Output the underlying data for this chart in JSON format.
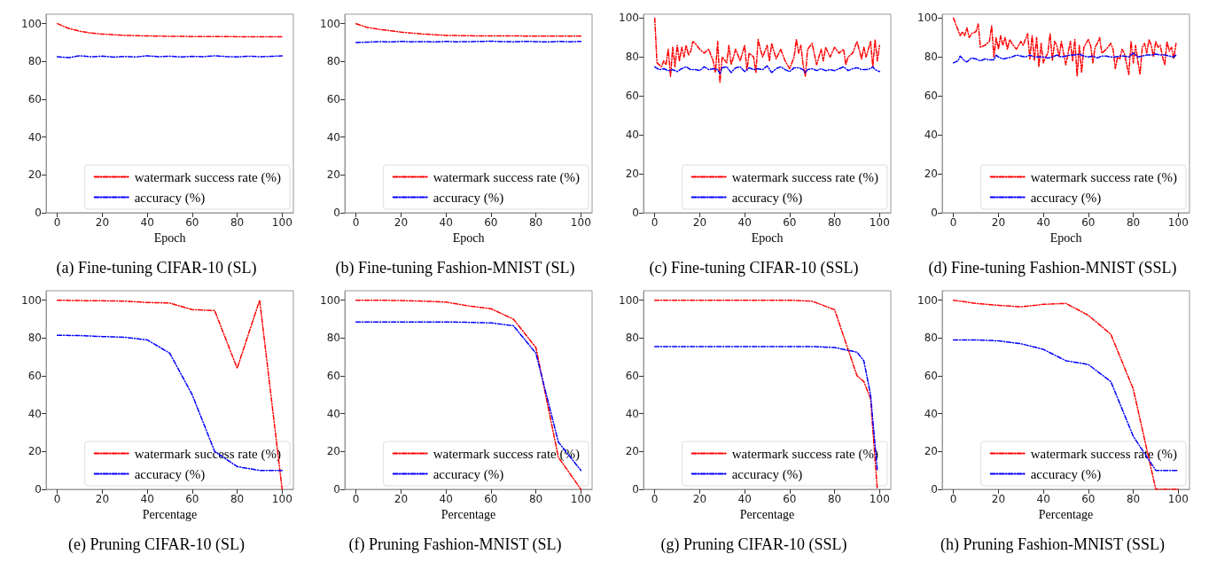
{
  "chart_data": [
    {
      "type": "line",
      "title": "(a) Fine-tuning CIFAR-10 (SL)",
      "xlabel": "Epoch",
      "xlim": [
        -5,
        105
      ],
      "xticks": [
        0,
        20,
        40,
        60,
        80,
        100
      ],
      "ylim": [
        0,
        105
      ],
      "yticks": [
        0,
        20,
        40,
        60,
        80,
        100
      ],
      "legend": "bottom right",
      "line_style": "dashed",
      "grid": false,
      "marker": "none",
      "series": [
        {
          "name": "watermark success rate (%)",
          "color": "#ff0000",
          "x": [
            0,
            5,
            10,
            15,
            20,
            30,
            40,
            50,
            60,
            70,
            80,
            90,
            100
          ],
          "values": [
            100,
            97.5,
            96,
            95,
            94.5,
            93.8,
            93.5,
            93.3,
            93.2,
            93.2,
            93.1,
            93.1,
            93.1
          ]
        },
        {
          "name": "accuracy (%)",
          "color": "#0000ff",
          "x": [
            0,
            5,
            10,
            15,
            20,
            25,
            30,
            35,
            40,
            45,
            50,
            55,
            60,
            65,
            70,
            75,
            80,
            85,
            90,
            95,
            100
          ],
          "values": [
            82.5,
            82,
            83,
            82.5,
            82.8,
            82.3,
            82.6,
            82.4,
            83,
            82.5,
            82.8,
            82.4,
            82.7,
            82.5,
            83,
            82.6,
            82.4,
            82.8,
            82.5,
            82.7,
            83
          ]
        }
      ]
    },
    {
      "type": "line",
      "title": "(b) Fine-tuning Fashion-MNIST (SL)",
      "xlabel": "Epoch",
      "xlim": [
        -5,
        105
      ],
      "xticks": [
        0,
        20,
        40,
        60,
        80,
        100
      ],
      "ylim": [
        0,
        105
      ],
      "yticks": [
        0,
        20,
        40,
        60,
        80,
        100
      ],
      "legend": "bottom right",
      "line_style": "dashed",
      "grid": false,
      "marker": "none",
      "series": [
        {
          "name": "watermark success rate (%)",
          "color": "#ff0000",
          "x": [
            0,
            5,
            10,
            15,
            20,
            30,
            40,
            50,
            60,
            70,
            80,
            90,
            100
          ],
          "values": [
            100,
            98,
            97,
            96.3,
            95.5,
            94.5,
            93.8,
            93.6,
            93.5,
            93.5,
            93.4,
            93.4,
            93.4
          ]
        },
        {
          "name": "accuracy (%)",
          "color": "#0000ff",
          "x": [
            0,
            5,
            10,
            15,
            20,
            25,
            30,
            35,
            40,
            45,
            50,
            55,
            60,
            65,
            70,
            75,
            80,
            85,
            90,
            95,
            100
          ],
          "values": [
            90,
            90.2,
            90.5,
            90.3,
            90.6,
            90.4,
            90.5,
            90.3,
            90.6,
            90.4,
            90.5,
            90.6,
            90.7,
            90.5,
            90.4,
            90.6,
            90.5,
            90.3,
            90.6,
            90.4,
            90.6
          ]
        }
      ]
    },
    {
      "type": "line",
      "title": "(c) Fine-tuning CIFAR-10 (SSL)",
      "xlabel": "Epoch",
      "xlim": [
        -5,
        105
      ],
      "xticks": [
        0,
        20,
        40,
        60,
        80,
        100
      ],
      "ylim": [
        0,
        102
      ],
      "yticks": [
        0,
        20,
        40,
        60,
        80,
        100
      ],
      "legend": "bottom right",
      "line_style": "dashed",
      "grid": false,
      "marker": "none",
      "series": [
        {
          "name": "watermark success rate (%)",
          "color": "#ff0000",
          "x": [
            0,
            1,
            2,
            3,
            4,
            5,
            6,
            7,
            8,
            9,
            10,
            11,
            12,
            13,
            14,
            15,
            16,
            17,
            18,
            20,
            22,
            24,
            26,
            27,
            28,
            29,
            30,
            32,
            33,
            34,
            36,
            38,
            40,
            41,
            42,
            44,
            45,
            46,
            47,
            48,
            50,
            51,
            52,
            54,
            56,
            58,
            60,
            62,
            63,
            64,
            65,
            66,
            67,
            68,
            70,
            72,
            74,
            75,
            76,
            78,
            80,
            82,
            84,
            85,
            86,
            88,
            90,
            92,
            93,
            94,
            96,
            97,
            98,
            99,
            100
          ],
          "values": [
            100,
            77,
            76,
            75,
            78,
            76,
            84,
            70,
            85,
            75,
            86,
            78,
            85,
            80,
            86,
            81,
            83,
            88,
            87,
            84,
            82,
            84,
            78,
            72,
            88,
            67,
            80,
            77,
            86,
            76,
            84,
            78,
            86,
            73,
            82,
            80,
            72,
            89,
            84,
            80,
            86,
            78,
            87,
            79,
            84,
            78,
            74,
            80,
            89,
            82,
            86,
            76,
            70,
            84,
            87,
            76,
            84,
            78,
            85,
            80,
            85,
            82,
            84,
            76,
            80,
            82,
            88,
            79,
            85,
            80,
            88,
            75,
            89,
            78,
            86
          ]
        },
        {
          "name": "accuracy (%)",
          "color": "#0000ff",
          "x": [
            0,
            2,
            4,
            6,
            8,
            10,
            12,
            14,
            16,
            18,
            20,
            22,
            24,
            26,
            28,
            29,
            30,
            32,
            34,
            36,
            38,
            40,
            42,
            44,
            46,
            48,
            50,
            52,
            54,
            56,
            58,
            60,
            62,
            64,
            66,
            67,
            68,
            70,
            72,
            74,
            76,
            78,
            80,
            82,
            84,
            86,
            88,
            90,
            92,
            94,
            96,
            97,
            98,
            100
          ],
          "values": [
            75,
            73.5,
            74,
            73,
            73.5,
            72.5,
            74,
            75,
            73.5,
            73.5,
            73,
            75,
            73.5,
            74,
            73.5,
            71.5,
            74.5,
            75,
            72,
            74.5,
            75,
            72.5,
            74.5,
            73.5,
            74,
            73.5,
            75.5,
            72,
            74,
            75,
            73.5,
            72.5,
            74.5,
            74.5,
            73.5,
            72,
            73.5,
            74,
            73,
            74,
            73,
            73.5,
            73,
            74,
            75,
            73,
            74,
            74.5,
            73.5,
            73.5,
            74,
            75,
            73.5,
            72.5
          ]
        }
      ]
    },
    {
      "type": "line",
      "title": "(d) Fine-tuning Fashion-MNIST (SSL)",
      "xlabel": "Epoch",
      "xlim": [
        -5,
        105
      ],
      "xticks": [
        0,
        20,
        40,
        60,
        80,
        100
      ],
      "ylim": [
        0,
        102
      ],
      "yticks": [
        0,
        20,
        40,
        60,
        80,
        100
      ],
      "legend": "bottom right",
      "line_style": "dashed",
      "grid": false,
      "marker": "none",
      "series": [
        {
          "name": "watermark success rate (%)",
          "color": "#ff0000",
          "x": [
            0,
            2,
            3,
            4,
            5,
            6,
            7,
            8,
            10,
            11,
            12,
            14,
            16,
            17,
            18,
            19,
            20,
            21,
            22,
            23,
            24,
            25,
            26,
            28,
            30,
            31,
            33,
            34,
            35,
            36,
            37,
            38,
            39,
            40,
            41,
            42,
            43,
            44,
            45,
            46,
            47,
            48,
            50,
            51,
            52,
            53,
            54,
            55,
            56,
            57,
            58,
            60,
            61,
            62,
            63,
            64,
            65,
            66,
            68,
            70,
            71,
            72,
            73,
            74,
            75,
            76,
            78,
            79,
            80,
            81,
            82,
            83,
            84,
            85,
            86,
            87,
            88,
            89,
            90,
            91,
            92,
            93,
            94,
            95,
            96,
            97,
            98,
            99
          ],
          "values": [
            100,
            94,
            91,
            93,
            91,
            95,
            90,
            92,
            93,
            97,
            85,
            86,
            88,
            96,
            80,
            90,
            84,
            91,
            86,
            90,
            84,
            89,
            87,
            84,
            88,
            86,
            92,
            79,
            91,
            78,
            90,
            75,
            87,
            77,
            80,
            82,
            92,
            78,
            88,
            86,
            80,
            88,
            76,
            82,
            88,
            78,
            89,
            70,
            86,
            72,
            85,
            89,
            86,
            77,
            85,
            87,
            90,
            82,
            84,
            87,
            84,
            74,
            80,
            79,
            84,
            82,
            71,
            88,
            77,
            86,
            78,
            71,
            85,
            87,
            82,
            89,
            86,
            80,
            88,
            85,
            86,
            80,
            76,
            88,
            83,
            85,
            79,
            87
          ]
        },
        {
          "name": "accuracy (%)",
          "color": "#0000ff",
          "x": [
            0,
            2,
            3,
            5,
            6,
            8,
            10,
            12,
            14,
            16,
            18,
            19,
            20,
            22,
            24,
            26,
            28,
            30,
            32,
            34,
            36,
            38,
            40,
            42,
            44,
            46,
            48,
            50,
            52,
            54,
            56,
            58,
            60,
            62,
            64,
            66,
            68,
            70,
            72,
            74,
            76,
            78,
            80,
            82,
            84,
            86,
            88,
            90,
            92,
            94,
            96,
            98,
            99
          ],
          "values": [
            77,
            78,
            80.5,
            78,
            77.5,
            79.5,
            79,
            78,
            79,
            78.5,
            78.5,
            81,
            80,
            79,
            79.5,
            80,
            81,
            80.5,
            80,
            81,
            80,
            80,
            80,
            79.5,
            80,
            81,
            80,
            80.5,
            81,
            81,
            81.5,
            80.5,
            80,
            80.5,
            79.5,
            80.5,
            80.5,
            80,
            80,
            80.5,
            80.5,
            80,
            82,
            80,
            80.5,
            81,
            81,
            81.5,
            81,
            81,
            80.5,
            80,
            81
          ]
        }
      ]
    },
    {
      "type": "line",
      "title": "(e) Pruning CIFAR-10 (SL)",
      "xlabel": "Percentage",
      "xlim": [
        -5,
        105
      ],
      "xticks": [
        0,
        20,
        40,
        60,
        80,
        100
      ],
      "ylim": [
        0,
        105
      ],
      "yticks": [
        0,
        20,
        40,
        60,
        80,
        100
      ],
      "legend": "bottom right",
      "line_style": "dashed",
      "grid": false,
      "marker": "none",
      "series": [
        {
          "name": "watermark success rate (%)",
          "color": "#ff0000",
          "x": [
            0,
            10,
            20,
            30,
            40,
            50,
            60,
            70,
            80,
            90,
            100
          ],
          "values": [
            100,
            99.8,
            99.7,
            99.5,
            98.8,
            98.5,
            95,
            94.5,
            64,
            100,
            0
          ]
        },
        {
          "name": "accuracy (%)",
          "color": "#0000ff",
          "x": [
            0,
            10,
            20,
            30,
            40,
            50,
            60,
            70,
            80,
            90,
            100
          ],
          "values": [
            81.5,
            81.3,
            80.8,
            80.4,
            79,
            72,
            50,
            20,
            12,
            10,
            10
          ]
        }
      ]
    },
    {
      "type": "line",
      "title": "(f) Pruning Fashion-MNIST (SL)",
      "xlabel": "Percentage",
      "xlim": [
        -5,
        105
      ],
      "xticks": [
        0,
        20,
        40,
        60,
        80,
        100
      ],
      "ylim": [
        0,
        105
      ],
      "yticks": [
        0,
        20,
        40,
        60,
        80,
        100
      ],
      "legend": "bottom right",
      "line_style": "dashed",
      "grid": false,
      "marker": "none",
      "series": [
        {
          "name": "watermark success rate (%)",
          "color": "#ff0000",
          "x": [
            0,
            10,
            20,
            30,
            40,
            50,
            60,
            70,
            80,
            90,
            100
          ],
          "values": [
            100,
            100,
            99.8,
            99.5,
            99,
            97,
            95.5,
            90,
            75,
            17,
            0
          ]
        },
        {
          "name": "accuracy (%)",
          "color": "#0000ff",
          "x": [
            0,
            10,
            20,
            30,
            40,
            50,
            60,
            70,
            80,
            90,
            100
          ],
          "values": [
            88.5,
            88.5,
            88.5,
            88.5,
            88.5,
            88.3,
            88,
            86.5,
            72,
            25,
            10
          ]
        }
      ]
    },
    {
      "type": "line",
      "title": "(g) Pruning CIFAR-10 (SSL)",
      "xlabel": "Percentage",
      "xlim": [
        -5,
        105
      ],
      "xticks": [
        0,
        20,
        40,
        60,
        80,
        100
      ],
      "ylim": [
        0,
        105
      ],
      "yticks": [
        0,
        20,
        40,
        60,
        80,
        100
      ],
      "legend": "bottom right",
      "line_style": "dashed",
      "grid": false,
      "marker": "none",
      "series": [
        {
          "name": "watermark success rate (%)",
          "color": "#ff0000",
          "x": [
            0,
            10,
            20,
            30,
            40,
            50,
            60,
            70,
            80,
            90,
            93,
            96,
            99
          ],
          "values": [
            100,
            100,
            100,
            100,
            100,
            100,
            100,
            99.5,
            95,
            60,
            57,
            48,
            0
          ]
        },
        {
          "name": "accuracy (%)",
          "color": "#0000ff",
          "x": [
            0,
            10,
            20,
            30,
            40,
            50,
            60,
            70,
            80,
            90,
            93,
            96,
            99
          ],
          "values": [
            75.5,
            75.5,
            75.5,
            75.5,
            75.5,
            75.5,
            75.5,
            75.5,
            75,
            72.5,
            68,
            50,
            10
          ]
        }
      ]
    },
    {
      "type": "line",
      "title": "(h) Pruning Fashion-MNIST (SSL)",
      "xlabel": "Percentage",
      "xlim": [
        -5,
        105
      ],
      "xticks": [
        0,
        20,
        40,
        60,
        80,
        100
      ],
      "ylim": [
        0,
        105
      ],
      "yticks": [
        0,
        20,
        40,
        60,
        80,
        100
      ],
      "legend": "bottom right",
      "line_style": "dashed",
      "grid": false,
      "marker": "none",
      "series": [
        {
          "name": "watermark success rate (%)",
          "color": "#ff0000",
          "x": [
            0,
            10,
            20,
            30,
            40,
            50,
            60,
            70,
            80,
            90,
            100
          ],
          "values": [
            100,
            98.3,
            97.3,
            96.5,
            97.8,
            98.3,
            92,
            82,
            53,
            0,
            0
          ]
        },
        {
          "name": "accuracy (%)",
          "color": "#0000ff",
          "x": [
            0,
            10,
            20,
            30,
            40,
            50,
            60,
            70,
            80,
            90,
            100
          ],
          "values": [
            79,
            79,
            78.5,
            77,
            74,
            68,
            66,
            57,
            28,
            10,
            10
          ]
        }
      ]
    }
  ]
}
